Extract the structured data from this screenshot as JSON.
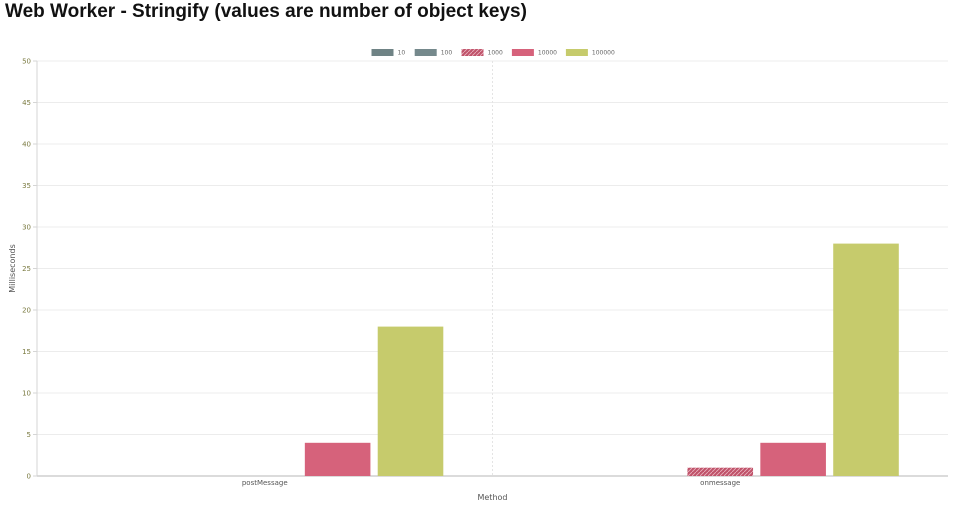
{
  "title": "Web Worker - Stringify (values are number of object keys)",
  "chart_data": {
    "type": "bar",
    "categories": [
      "postMessage",
      "onmessage"
    ],
    "series": [
      {
        "name": "10",
        "values": [
          0,
          0
        ],
        "color": "#6f8385",
        "pattern": "solid"
      },
      {
        "name": "100",
        "values": [
          0,
          0
        ],
        "color": "#75898c",
        "pattern": "solid"
      },
      {
        "name": "1000",
        "values": [
          0,
          1
        ],
        "color": "#c0536a",
        "pattern": "hatched"
      },
      {
        "name": "10000",
        "values": [
          4,
          4
        ],
        "color": "#d6627b",
        "pattern": "solid"
      },
      {
        "name": "100000",
        "values": [
          18,
          28
        ],
        "color": "#c6cb6c",
        "pattern": "solid"
      }
    ],
    "xlabel": "Method",
    "ylabel": "Milliseconds",
    "ylim": [
      0,
      50
    ],
    "yticks": [
      0,
      5,
      10,
      15,
      20,
      25,
      30,
      35,
      40,
      45,
      50
    ],
    "grid": true,
    "legend_position": "top-center"
  }
}
